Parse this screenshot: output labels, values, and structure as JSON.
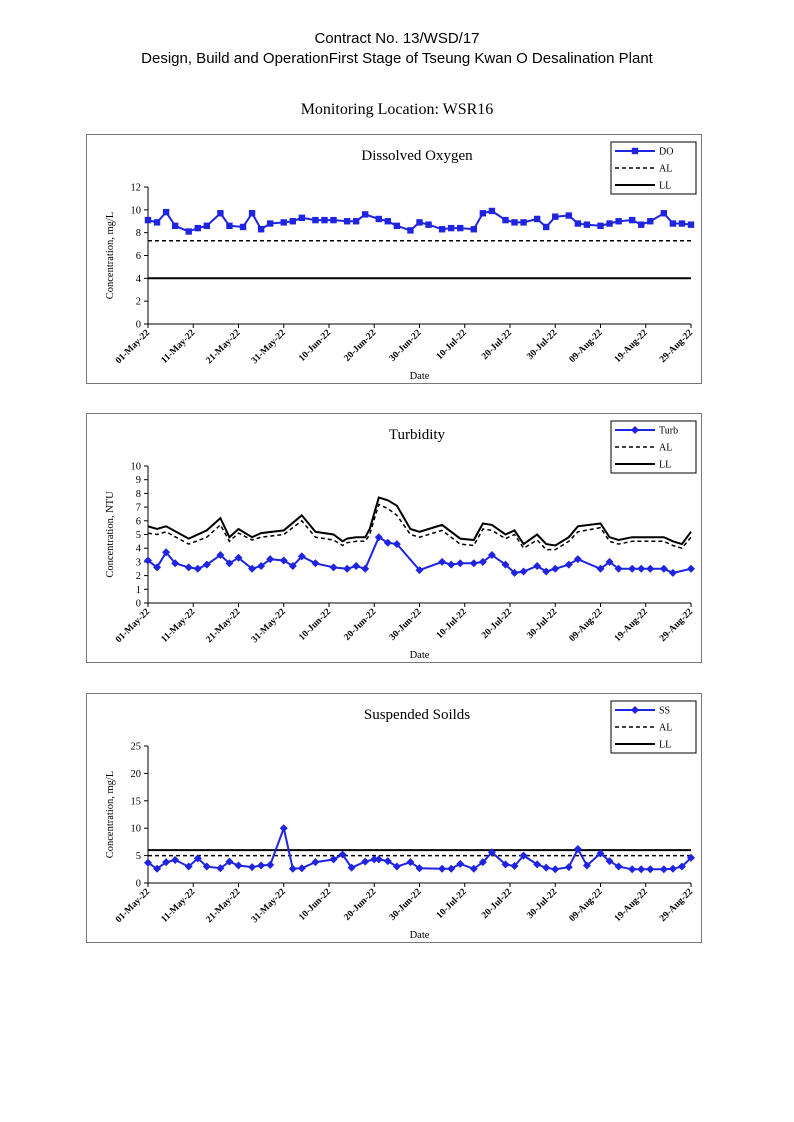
{
  "header": {
    "line1": "Contract No. 13/WSD/17",
    "line2": "Design, Build and OperationFirst Stage  of Tseung Kwan O Desalination Plant",
    "location": "Monitoring Location: WSR16"
  },
  "colors": {
    "series": "#1f24e0",
    "limits": "#000000"
  },
  "chart_data": [
    {
      "type": "line",
      "title": "Dissolved Oxygen",
      "xlabel": "Date",
      "ylabel": "Concentration, mg/L",
      "ylim": [
        0,
        12
      ],
      "yticks": [
        "0",
        "2",
        "4",
        "6",
        "8",
        "10",
        "12"
      ],
      "xlim": [
        0,
        120
      ],
      "xticks": [
        "01-May-22",
        "11-May-22",
        "21-May-22",
        "31-May-22",
        "10-Jun-22",
        "20-Jun-22",
        "30-Jun-22",
        "10-Jul-22",
        "20-Jul-22",
        "30-Jul-22",
        "09-Aug-22",
        "19-Aug-22",
        "29-Aug-22"
      ],
      "legend_position": "top-right",
      "marker": "square",
      "series": [
        {
          "name": "DO",
          "style": "marker-line",
          "x": [
            0,
            2,
            4,
            6,
            9,
            11,
            13,
            16,
            18,
            21,
            23,
            25,
            27,
            30,
            32,
            34,
            37,
            39,
            41,
            44,
            46,
            48,
            51,
            53,
            55,
            58,
            60,
            62,
            65,
            67,
            69,
            72,
            74,
            76,
            79,
            81,
            83,
            86,
            88,
            90,
            93,
            95,
            97,
            100,
            102,
            104,
            107,
            109,
            111,
            114,
            116,
            118,
            120
          ],
          "y": [
            9.1,
            8.9,
            9.8,
            8.6,
            8.1,
            8.4,
            8.6,
            9.7,
            8.6,
            8.5,
            9.7,
            8.3,
            8.8,
            8.9,
            9.0,
            9.3,
            9.1,
            9.1,
            9.1,
            9.0,
            9.0,
            9.6,
            9.2,
            9.0,
            8.6,
            8.2,
            8.9,
            8.7,
            8.3,
            8.4,
            8.4,
            8.3,
            9.7,
            9.9,
            9.1,
            8.9,
            8.9,
            9.2,
            8.5,
            9.4,
            9.5,
            8.8,
            8.7,
            8.6,
            8.8,
            9.0,
            9.1,
            8.7,
            9.0,
            9.7,
            8.8,
            8.8,
            8.7
          ]
        },
        {
          "name": "AL",
          "style": "dashed",
          "x": [
            0,
            120
          ],
          "y": [
            7.3,
            7.3
          ]
        },
        {
          "name": "LL",
          "style": "solid",
          "x": [
            0,
            120
          ],
          "y": [
            4.0,
            4.0
          ]
        }
      ]
    },
    {
      "type": "line",
      "title": "Turbidity",
      "xlabel": "Date",
      "ylabel": "Concentration, NTU",
      "ylim": [
        0,
        10
      ],
      "yticks": [
        "0",
        "1",
        "2",
        "3",
        "4",
        "5",
        "6",
        "7",
        "8",
        "9",
        "10"
      ],
      "xlim": [
        0,
        120
      ],
      "xticks": [
        "01-May-22",
        "11-May-22",
        "21-May-22",
        "31-May-22",
        "10-Jun-22",
        "20-Jun-22",
        "30-Jun-22",
        "10-Jul-22",
        "20-Jul-22",
        "30-Jul-22",
        "09-Aug-22",
        "19-Aug-22",
        "29-Aug-22"
      ],
      "legend_position": "top-right",
      "marker": "diamond",
      "series": [
        {
          "name": "Turb",
          "style": "marker-line",
          "x": [
            0,
            2,
            4,
            6,
            9,
            11,
            13,
            16,
            18,
            20,
            23,
            25,
            27,
            30,
            32,
            34,
            37,
            41,
            44,
            46,
            48,
            51,
            53,
            55,
            60,
            65,
            67,
            69,
            72,
            74,
            76,
            79,
            81,
            83,
            86,
            88,
            90,
            93,
            95,
            100,
            102,
            104,
            107,
            109,
            111,
            114,
            116,
            120
          ],
          "y": [
            3.1,
            2.6,
            3.7,
            2.9,
            2.6,
            2.5,
            2.8,
            3.5,
            2.9,
            3.3,
            2.5,
            2.7,
            3.2,
            3.1,
            2.7,
            3.4,
            2.9,
            2.6,
            2.5,
            2.7,
            2.5,
            4.8,
            4.4,
            4.3,
            2.4,
            3.0,
            2.8,
            2.9,
            2.9,
            3.0,
            3.5,
            2.8,
            2.2,
            2.3,
            2.7,
            2.3,
            2.5,
            2.8,
            3.2,
            2.5,
            3.0,
            2.5,
            2.5,
            2.5,
            2.5,
            2.5,
            2.2,
            2.5
          ]
        },
        {
          "name": "AL",
          "style": "dashed",
          "x": [
            0,
            2,
            4,
            9,
            13,
            16,
            18,
            20,
            23,
            25,
            30,
            34,
            37,
            41,
            43,
            44,
            46,
            48,
            49,
            51,
            53,
            55,
            58,
            60,
            62,
            65,
            69,
            72,
            74,
            76,
            79,
            81,
            83,
            86,
            88,
            90,
            93,
            95,
            100,
            102,
            104,
            107,
            109,
            111,
            114,
            116,
            118,
            120
          ],
          "y": [
            5.1,
            5.0,
            5.2,
            4.3,
            4.8,
            5.7,
            4.5,
            5.1,
            4.6,
            4.8,
            5.0,
            6.0,
            4.8,
            4.6,
            4.2,
            4.4,
            4.5,
            4.5,
            5.0,
            7.2,
            6.9,
            6.4,
            5.0,
            4.8,
            5.0,
            5.3,
            4.3,
            4.2,
            5.4,
            5.3,
            4.7,
            5.0,
            4.0,
            4.6,
            3.9,
            3.9,
            4.5,
            5.2,
            5.5,
            4.5,
            4.3,
            4.5,
            4.5,
            4.5,
            4.5,
            4.2,
            4.0,
            4.8
          ]
        },
        {
          "name": "LL",
          "style": "solid",
          "x": [
            0,
            2,
            4,
            9,
            13,
            16,
            18,
            20,
            23,
            25,
            30,
            34,
            37,
            41,
            43,
            44,
            46,
            48,
            49,
            51,
            53,
            55,
            58,
            60,
            62,
            65,
            69,
            72,
            74,
            76,
            79,
            81,
            83,
            86,
            88,
            90,
            93,
            95,
            100,
            102,
            104,
            107,
            109,
            111,
            114,
            116,
            118,
            120
          ],
          "y": [
            5.6,
            5.4,
            5.6,
            4.7,
            5.3,
            6.2,
            4.8,
            5.4,
            4.8,
            5.1,
            5.3,
            6.4,
            5.2,
            5.0,
            4.5,
            4.7,
            4.8,
            4.8,
            5.4,
            7.7,
            7.5,
            7.1,
            5.4,
            5.2,
            5.4,
            5.7,
            4.7,
            4.6,
            5.8,
            5.7,
            5.0,
            5.3,
            4.3,
            5.0,
            4.3,
            4.2,
            4.8,
            5.6,
            5.8,
            4.8,
            4.6,
            4.8,
            4.8,
            4.8,
            4.8,
            4.5,
            4.3,
            5.2
          ]
        }
      ]
    },
    {
      "type": "line",
      "title": "Suspended Soilds",
      "xlabel": "Date",
      "ylabel": "Concentration, mg/L",
      "ylim": [
        0,
        25
      ],
      "yticks": [
        "0",
        "5",
        "10",
        "15",
        "20",
        "25"
      ],
      "xlim": [
        0,
        120
      ],
      "xticks": [
        "01-May-22",
        "11-May-22",
        "21-May-22",
        "31-May-22",
        "10-Jun-22",
        "20-Jun-22",
        "30-Jun-22",
        "10-Jul-22",
        "20-Jul-22",
        "30-Jul-22",
        "09-Aug-22",
        "19-Aug-22",
        "29-Aug-22"
      ],
      "legend_position": "top-right",
      "marker": "diamond",
      "series": [
        {
          "name": "SS",
          "style": "marker-line",
          "x": [
            0,
            2,
            4,
            6,
            9,
            11,
            13,
            16,
            18,
            20,
            23,
            25,
            27,
            30,
            32,
            34,
            37,
            41,
            43,
            45,
            48,
            50,
            51,
            53,
            55,
            58,
            60,
            65,
            67,
            69,
            72,
            74,
            76,
            79,
            81,
            83,
            86,
            88,
            90,
            93,
            95,
            97,
            100,
            102,
            104,
            107,
            109,
            111,
            114,
            116,
            118,
            120
          ],
          "y": [
            3.7,
            2.6,
            3.8,
            4.2,
            3.0,
            4.5,
            3.0,
            2.7,
            3.9,
            3.2,
            2.9,
            3.2,
            3.3,
            10.0,
            2.6,
            2.7,
            3.8,
            4.3,
            5.2,
            2.8,
            3.9,
            4.3,
            4.3,
            4.0,
            3.0,
            3.8,
            2.7,
            2.6,
            2.6,
            3.5,
            2.6,
            3.8,
            5.6,
            3.4,
            3.1,
            5.0,
            3.4,
            2.8,
            2.5,
            2.9,
            6.2,
            3.2,
            5.4,
            4.0,
            3.0,
            2.5,
            2.5,
            2.5,
            2.5,
            2.6,
            3.0,
            4.6
          ]
        },
        {
          "name": "AL",
          "style": "dashed",
          "x": [
            0,
            120
          ],
          "y": [
            5.0,
            5.0
          ]
        },
        {
          "name": "LL",
          "style": "solid",
          "x": [
            0,
            120
          ],
          "y": [
            6.0,
            6.0
          ]
        }
      ]
    }
  ]
}
